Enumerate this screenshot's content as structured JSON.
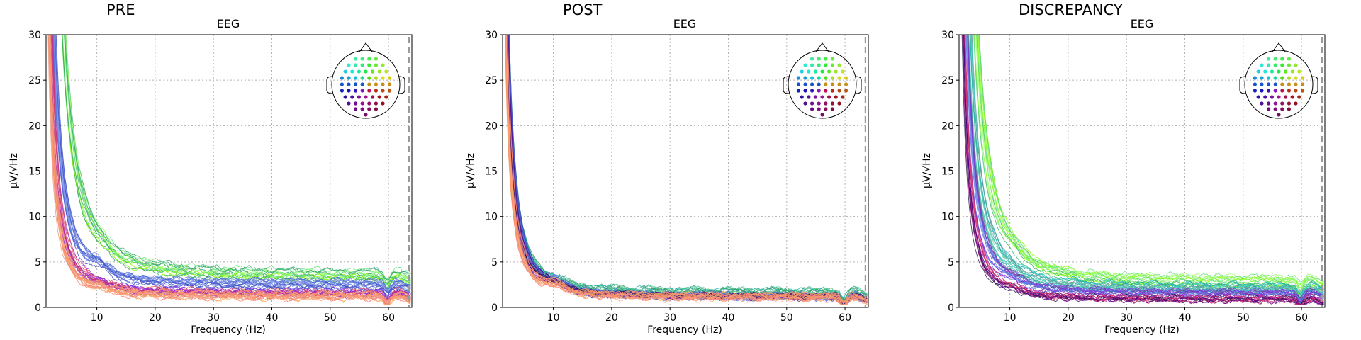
{
  "figure": {
    "background": "#ffffff"
  },
  "chart_data": [
    {
      "type": "line",
      "panel_title": "PRE",
      "title": "EEG",
      "xlabel": "Frequency (Hz)",
      "ylabel": "µV/√Hz",
      "xlim": [
        1.3,
        64
      ],
      "ylim": [
        0,
        30
      ],
      "xticks": [
        10,
        20,
        30,
        40,
        50,
        60
      ],
      "yticks": [
        0,
        5,
        10,
        15,
        20,
        25,
        30
      ],
      "grid": true,
      "nyquist_line_x": 63.5,
      "inset": "sensor-topomap top-right",
      "channel_count": 60,
      "legend": "none",
      "series_groups": [
        {
          "color_family": "green",
          "colors": [
            "#7cfc00",
            "#9aff6a",
            "#66e07a",
            "#3cb371",
            "#2e9e6b"
          ],
          "amplitude_at_5hz": [
            22,
            30
          ],
          "plateau": [
            2.8,
            4.2
          ]
        },
        {
          "color_family": "blue",
          "colors": [
            "#6b7fe0",
            "#4f6fd8",
            "#3a4bc2",
            "#7b8ee8"
          ],
          "amplitude_at_5hz": [
            10,
            14
          ],
          "plateau": [
            2.0,
            3.0
          ]
        },
        {
          "color_family": "purple-magenta",
          "colors": [
            "#8a2be2",
            "#b0208e",
            "#d6336c",
            "#e04464",
            "#9932cc"
          ],
          "amplitude_at_5hz": [
            6,
            9
          ],
          "plateau": [
            1.2,
            2.0
          ]
        },
        {
          "color_family": "orange-salmon",
          "colors": [
            "#f4a460",
            "#fa8072",
            "#ffa07a",
            "#e9967a"
          ],
          "amplitude_at_5hz": [
            5,
            7
          ],
          "plateau": [
            0.9,
            1.6
          ]
        }
      ]
    },
    {
      "type": "line",
      "panel_title": "POST",
      "title": "EEG",
      "xlabel": "Frequency (Hz)",
      "ylabel": "µV/√Hz",
      "xlim": [
        1.3,
        64
      ],
      "ylim": [
        0,
        30
      ],
      "xticks": [
        10,
        20,
        30,
        40,
        50,
        60
      ],
      "yticks": [
        0,
        5,
        10,
        15,
        20,
        25,
        30
      ],
      "grid": true,
      "nyquist_line_x": 63.5,
      "inset": "sensor-topomap top-right",
      "channel_count": 60,
      "legend": "none",
      "series_groups": [
        {
          "color_family": "green",
          "colors": [
            "#3cb371",
            "#2e9e6b",
            "#66cdaa",
            "#20b2aa"
          ],
          "amplitude_at_5hz": [
            7,
            9
          ],
          "plateau": [
            1.3,
            2.0
          ]
        },
        {
          "color_family": "blue",
          "colors": [
            "#4f6fd8",
            "#3a4bc2",
            "#6b7fe0",
            "#5a5acd"
          ],
          "amplitude_at_5hz": [
            7,
            9
          ],
          "plateau": [
            1.0,
            1.5
          ]
        },
        {
          "color_family": "purple-dark",
          "colors": [
            "#4b0082",
            "#6a3d9a",
            "#2f1b4d",
            "#8b008b"
          ],
          "amplitude_at_5hz": [
            6,
            8
          ],
          "plateau": [
            1.0,
            1.4
          ]
        },
        {
          "color_family": "orange-salmon",
          "colors": [
            "#f4a460",
            "#fa8072",
            "#ffa07a"
          ],
          "amplitude_at_5hz": [
            5,
            7
          ],
          "plateau": [
            0.8,
            1.4
          ]
        }
      ]
    },
    {
      "type": "line",
      "panel_title": "DISCREPANCY",
      "title": "EEG",
      "xlabel": "Frequency (Hz)",
      "ylabel": "µV/√Hz",
      "xlim": [
        1.3,
        64
      ],
      "ylim": [
        0,
        30
      ],
      "xticks": [
        10,
        20,
        30,
        40,
        50,
        60
      ],
      "yticks": [
        0,
        5,
        10,
        15,
        20,
        25,
        30
      ],
      "grid": true,
      "nyquist_line_x": 63.5,
      "inset": "sensor-topomap top-right",
      "channel_count": 60,
      "legend": "none",
      "series_groups": [
        {
          "color_family": "green",
          "colors": [
            "#7cfc00",
            "#9aff6a",
            "#66e07a",
            "#3cb371"
          ],
          "amplitude_at_5hz": [
            20,
            30
          ],
          "plateau": [
            2.2,
            3.4
          ]
        },
        {
          "color_family": "teal-cyan",
          "colors": [
            "#20b2aa",
            "#48d1cc",
            "#5f9ea0",
            "#66cdaa"
          ],
          "amplitude_at_5hz": [
            12,
            18
          ],
          "plateau": [
            1.8,
            2.6
          ]
        },
        {
          "color_family": "blue-purple",
          "colors": [
            "#6b7fe0",
            "#4f6fd8",
            "#8a2be2",
            "#6a3d9a"
          ],
          "amplitude_at_5hz": [
            8,
            12
          ],
          "plateau": [
            1.2,
            1.8
          ]
        },
        {
          "color_family": "magenta-dark",
          "colors": [
            "#b0208e",
            "#4b0082",
            "#d6336c",
            "#2f1b4d"
          ],
          "amplitude_at_5hz": [
            5,
            8
          ],
          "plateau": [
            0.7,
            1.2
          ]
        }
      ]
    }
  ]
}
